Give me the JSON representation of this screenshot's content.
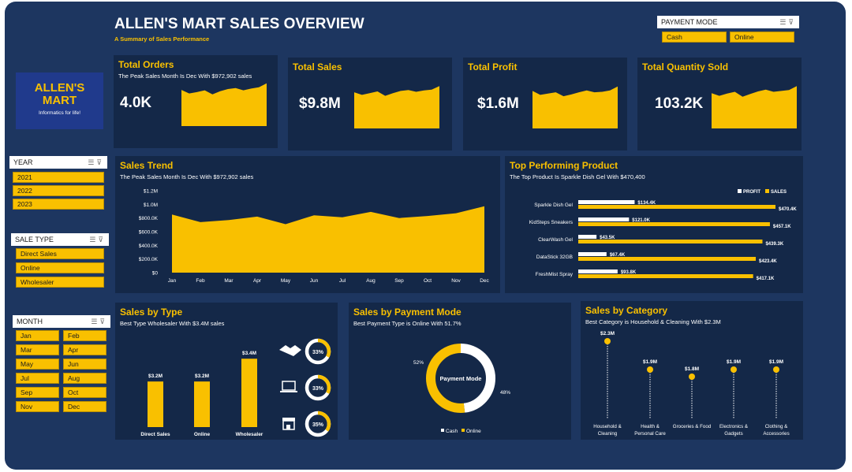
{
  "header": {
    "title": "ALLEN'S MART SALES OVERVIEW",
    "subtitle": "A Summary of Sales Performance"
  },
  "logo": {
    "line1": "ALLEN'S",
    "line2": "MART",
    "tagline": "Informatics for life!"
  },
  "slicers": {
    "payment_mode": {
      "label": "PAYMENT MODE",
      "items": [
        "Cash",
        "Online"
      ]
    },
    "year": {
      "label": "YEAR",
      "items": [
        "2021",
        "2022",
        "2023"
      ]
    },
    "sale_type": {
      "label": "SALE TYPE",
      "items": [
        "Direct Sales",
        "Online",
        "Wholesaler"
      ]
    },
    "month": {
      "label": "MONTH",
      "items": [
        "Jan",
        "Feb",
        "Mar",
        "Apr",
        "May",
        "Jun",
        "Jul",
        "Aug",
        "Sep",
        "Oct",
        "Nov",
        "Dec"
      ]
    }
  },
  "kpis": [
    {
      "title": "Total Orders",
      "subtitle": "The Peak Sales Month Is Dec With $972,902 sales",
      "value": "4.0K"
    },
    {
      "title": "Total Sales",
      "subtitle": "",
      "value": "$9.8M"
    },
    {
      "title": "Total Profit",
      "subtitle": "",
      "value": "$1.6M"
    },
    {
      "title": "Total Quantity Sold",
      "subtitle": "",
      "value": "103.2K"
    }
  ],
  "sales_trend": {
    "title": "Sales Trend",
    "subtitle": "The Peak Sales Month Is Dec With $972,902 sales"
  },
  "top_products": {
    "title": "Top Performing Product",
    "subtitle": "The Top Product Is Sparkle Dish Gel With $470,400"
  },
  "sales_by_type": {
    "title": "Sales by Type",
    "subtitle": "Best Type Wholesaler With $3.4M sales",
    "rings": [
      {
        "icon": "handshake-icon",
        "label": "33%",
        "pct": 0.33
      },
      {
        "icon": "laptop-icon",
        "label": "33%",
        "pct": 0.33
      },
      {
        "icon": "store-icon",
        "label": "35%",
        "pct": 0.35
      }
    ]
  },
  "payment_mode": {
    "title": "Sales by Payment Mode",
    "subtitle": "Best Payment Type is  Online With 51.7%",
    "center_label": "Payment Mode"
  },
  "category": {
    "title": "Sales by Category",
    "subtitle": "Best Category is  Household & Cleaning With $2.3M"
  },
  "colors": {
    "accent": "#f9c000",
    "background": "#1d3660",
    "card": "#142848",
    "white": "#ffffff"
  },
  "chart_data": [
    {
      "id": "kpi_sparklines",
      "type": "area",
      "x": [
        "Jan",
        "Feb",
        "Mar",
        "Apr",
        "May",
        "Jun",
        "Jul",
        "Aug",
        "Sep",
        "Oct",
        "Nov",
        "Dec"
      ],
      "series": [
        {
          "values": [
            820,
            740,
            770,
            810,
            720,
            790,
            840,
            860,
            810,
            850,
            880,
            970
          ]
        },
        {
          "values": [
            820,
            760,
            800,
            840,
            740,
            800,
            850,
            870,
            830,
            860,
            880,
            960
          ]
        },
        {
          "values": [
            850,
            760,
            790,
            820,
            730,
            770,
            820,
            860,
            820,
            830,
            860,
            950
          ]
        },
        {
          "values": [
            800,
            740,
            790,
            830,
            720,
            780,
            840,
            880,
            830,
            850,
            870,
            960
          ]
        }
      ]
    },
    {
      "id": "sales_trend",
      "type": "area",
      "x": [
        "Jan",
        "Feb",
        "Mar",
        "Apr",
        "May",
        "Jun",
        "Jul",
        "Aug",
        "Sep",
        "Oct",
        "Nov",
        "Dec"
      ],
      "y": [
        850000,
        740000,
        770000,
        820000,
        710000,
        840000,
        810000,
        890000,
        800000,
        830000,
        870000,
        972902
      ],
      "ylim": [
        0,
        1200000
      ],
      "yticks": [
        "$0",
        "$200.0K",
        "$400.0K",
        "$600.0K",
        "$800.0K",
        "$1.0M",
        "$1.2M"
      ],
      "grid": false
    },
    {
      "id": "top_products",
      "type": "bar",
      "orientation": "horizontal",
      "categories": [
        "Sparkle Dish Gel",
        "KidSteps Sneakers",
        "ClearWash Gel",
        "DataStick 32GB",
        "FreshMist Spray"
      ],
      "series": [
        {
          "name": "PROFIT",
          "values": [
            134400,
            121000,
            43500,
            67400,
            93800
          ],
          "labels": [
            "$134.4K",
            "$121.0K",
            "$43.5K",
            "$67.4K",
            "$93.8K"
          ]
        },
        {
          "name": "SALES",
          "values": [
            470400,
            457100,
            439300,
            423400,
            417100
          ],
          "labels": [
            "$470.4K",
            "$457.1K",
            "$439.3K",
            "$423.4K",
            "$417.1K"
          ]
        }
      ],
      "legend": "top-right"
    },
    {
      "id": "sales_by_type",
      "type": "bar",
      "categories": [
        "Direct Sales",
        "Online",
        "Wholesaler"
      ],
      "values": [
        3.2,
        3.2,
        3.4
      ],
      "labels": [
        "$3.2M",
        "$3.2M",
        "$3.4M"
      ],
      "ylim": [
        2.8,
        3.45
      ]
    },
    {
      "id": "payment_mode",
      "type": "pie",
      "labels": [
        "Cash",
        "Online"
      ],
      "values": [
        48,
        52
      ],
      "slice_labels": [
        "48%",
        "52%"
      ],
      "legend": "bottom"
    },
    {
      "id": "sales_by_category",
      "type": "scatter",
      "categories": [
        [
          "Household &",
          "Cleaning"
        ],
        [
          "Health &",
          "Personal Care"
        ],
        [
          "Groceries & Food"
        ],
        [
          "Electronics &",
          "Gadgets"
        ],
        [
          "Clothing &",
          "Accessories"
        ]
      ],
      "values": [
        2.3,
        1.9,
        1.8,
        1.9,
        1.9
      ],
      "labels": [
        "$2.3M",
        "$1.9M",
        "$1.8M",
        "$1.9M",
        "$1.9M"
      ]
    }
  ]
}
